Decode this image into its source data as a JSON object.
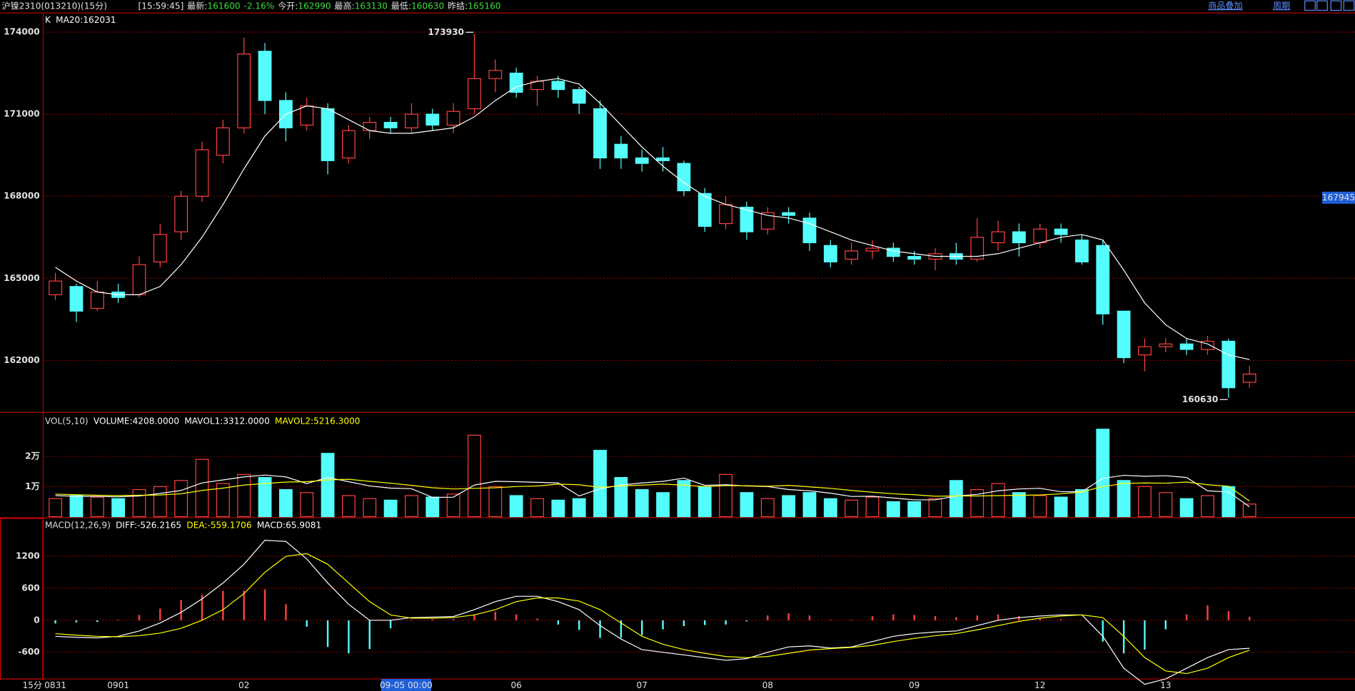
{
  "header": {
    "title": "沪镍2310(013210)(15分)",
    "time": "[15:59:45]",
    "quote": [
      {
        "label": "最新:",
        "value": 161600,
        "change": "-2.16%"
      },
      {
        "label": "今开:",
        "value": 162990
      },
      {
        "label": "最高:",
        "value": 163130
      },
      {
        "label": "最低:",
        "value": 160630
      },
      {
        "label": "昨结:",
        "value": 165160
      }
    ],
    "value_color": "#3cdc3c"
  },
  "toolbar": {
    "links": [
      "商品叠加",
      "周期"
    ]
  },
  "period_label": "15分",
  "cursor_time": "09-05 00:00",
  "chart_data": [
    {
      "type": "candlestick",
      "readouts": [
        {
          "text": "K",
          "color": "#ffffff"
        },
        {
          "text": "MA20:162031",
          "color": "#ffffff"
        }
      ],
      "categories": [
        "0831",
        null,
        null,
        "0901",
        null,
        null,
        null,
        null,
        null,
        "02",
        null,
        null,
        null,
        null,
        null,
        null,
        null,
        null,
        null,
        null,
        null,
        null,
        "06",
        null,
        null,
        null,
        null,
        null,
        "07",
        null,
        null,
        null,
        null,
        null,
        "08",
        null,
        null,
        null,
        null,
        null,
        null,
        "09",
        null,
        null,
        null,
        null,
        null,
        "12",
        null,
        null,
        null,
        null,
        null,
        "13",
        null,
        null,
        null,
        null
      ],
      "open": [
        164400,
        164700,
        163900,
        164500,
        164400,
        165600,
        166700,
        168000,
        169500,
        170500,
        173300,
        171500,
        170600,
        171200,
        169400,
        170400,
        170700,
        170500,
        171000,
        170600,
        171200,
        172300,
        172500,
        171900,
        172200,
        171900,
        171200,
        169900,
        169400,
        169400,
        169200,
        168100,
        167000,
        167600,
        166800,
        167400,
        167200,
        166200,
        165700,
        166000,
        166100,
        165800,
        165700,
        165900,
        165700,
        166300,
        166700,
        166300,
        166800,
        166400,
        166200,
        163800,
        162200,
        162500,
        162600,
        162400,
        162700,
        161200
      ],
      "high": [
        165200,
        164800,
        164900,
        164800,
        165800,
        167000,
        168200,
        170000,
        170800,
        173800,
        173600,
        171800,
        171600,
        171400,
        170600,
        170900,
        170900,
        171400,
        171200,
        171400,
        173930,
        173000,
        172700,
        172400,
        172400,
        172000,
        171500,
        170200,
        169700,
        169800,
        169300,
        168300,
        168000,
        167800,
        167600,
        167600,
        167400,
        166400,
        166300,
        166400,
        166300,
        166000,
        166100,
        166300,
        167200,
        167100,
        167000,
        167000,
        167000,
        166600,
        166400,
        163800,
        162800,
        162800,
        162800,
        162900,
        162800,
        161800
      ],
      "low": [
        164200,
        163400,
        163800,
        164100,
        164300,
        165400,
        166400,
        167800,
        169200,
        170300,
        171000,
        170000,
        170400,
        168800,
        169200,
        170100,
        170300,
        170300,
        170400,
        170300,
        171000,
        171800,
        171600,
        171300,
        171600,
        171000,
        169000,
        169000,
        168900,
        168900,
        168000,
        166700,
        166800,
        166400,
        166600,
        167000,
        166000,
        165400,
        165500,
        165700,
        165600,
        165500,
        165300,
        165500,
        165600,
        166000,
        165800,
        166100,
        166300,
        165500,
        163300,
        161900,
        161600,
        162300,
        162200,
        162200,
        160630,
        161000
      ],
      "close": [
        164900,
        163800,
        164500,
        164300,
        165500,
        166600,
        168000,
        169700,
        170500,
        173200,
        171500,
        170500,
        171300,
        169300,
        170400,
        170700,
        170500,
        171000,
        170600,
        171100,
        172300,
        172600,
        171800,
        172200,
        171900,
        171400,
        169400,
        169400,
        169200,
        169300,
        168200,
        166900,
        167700,
        166700,
        167400,
        167300,
        166300,
        165600,
        166000,
        166100,
        165800,
        165700,
        165900,
        165700,
        166500,
        166700,
        166300,
        166800,
        166600,
        165600,
        163700,
        162100,
        162500,
        162600,
        162400,
        162700,
        161000,
        161500
      ],
      "lines": [
        {
          "color": "#ffffff",
          "values": [
            165400,
            164900,
            164500,
            164400,
            164400,
            164700,
            165500,
            166500,
            167700,
            169000,
            170200,
            171000,
            171300,
            171200,
            170800,
            170400,
            170300,
            170300,
            170400,
            170500,
            170900,
            171500,
            172000,
            172200,
            172300,
            172100,
            171400,
            170600,
            169800,
            169100,
            168500,
            168000,
            167700,
            167500,
            167300,
            167200,
            167000,
            166700,
            166400,
            166200,
            166000,
            165900,
            165800,
            165800,
            165800,
            165900,
            166100,
            166300,
            166500,
            166600,
            166400,
            165300,
            164100,
            163300,
            162800,
            162600,
            162200,
            162031
          ]
        }
      ],
      "ylim": [
        160100,
        174700
      ],
      "yticks": [
        162000,
        165000,
        168000,
        171000,
        174000
      ],
      "up_color": "#ff4040",
      "down_color": "#54fcfc",
      "grid": true,
      "cursor_price": 167945
    },
    {
      "type": "volume",
      "readouts": [
        {
          "text": "VOL(5,10)",
          "color": "#dddddd"
        },
        {
          "text": "VOLUME:4208.0000",
          "color": "#ffffff"
        },
        {
          "text": "MAVOL1:3312.0000",
          "color": "#ffffff"
        },
        {
          "text": "MAVOL2:5216.3000",
          "color": "#ffff00"
        }
      ],
      "values": [
        6000,
        7000,
        6500,
        6000,
        9000,
        10000,
        12000,
        19000,
        11000,
        14000,
        13000,
        9000,
        8000,
        21000,
        7000,
        6000,
        5500,
        7000,
        6500,
        7500,
        27000,
        10000,
        7000,
        6000,
        5500,
        6000,
        22000,
        13000,
        9000,
        8000,
        12000,
        10000,
        14000,
        8000,
        6000,
        7000,
        8000,
        6000,
        5500,
        6500,
        5000,
        5000,
        6000,
        12000,
        9000,
        11000,
        8000,
        7000,
        6500,
        9000,
        29000,
        12000,
        10000,
        8000,
        6000,
        7000,
        10000,
        4208
      ],
      "lines": [
        {
          "color": "#ffffff",
          "values": [
            7000,
            6800,
            6700,
            6600,
            6900,
            7700,
            8700,
            11200,
            12200,
            13200,
            13800,
            13200,
            11000,
            13000,
            11600,
            10200,
            9500,
            9300,
            6400,
            6500,
            10500,
            11700,
            11600,
            11400,
            11200,
            6900,
            9300,
            10500,
            11200,
            11700,
            12800,
            10400,
            10600,
            10200,
            10000,
            9000,
            8600,
            7800,
            6700,
            6800,
            6200,
            5600,
            5600,
            6900,
            7400,
            8600,
            9200,
            9400,
            8300,
            8300,
            12700,
            13700,
            13400,
            13600,
            13000,
            8600,
            8200,
            3312
          ]
        },
        {
          "color": "#ffff00",
          "values": [
            7500,
            7300,
            7100,
            7000,
            7100,
            7200,
            7600,
            8700,
            9500,
            10500,
            11000,
            11500,
            11600,
            12200,
            12400,
            11700,
            11100,
            10400,
            9600,
            9200,
            9400,
            9600,
            10000,
            10200,
            10800,
            10600,
            9700,
            10200,
            10500,
            10800,
            10500,
            10000,
            10300,
            10300,
            10100,
            10400,
            9900,
            9400,
            8700,
            8100,
            7600,
            7300,
            6800,
            6900,
            6900,
            7000,
            7100,
            7200,
            7600,
            8200,
            10000,
            11000,
            11200,
            11100,
            11500,
            10600,
            10100,
            5216.3
          ]
        }
      ],
      "ylim": [
        0,
        34000
      ],
      "yticks": [
        {
          "value": 10000,
          "label": "1万"
        },
        {
          "value": 20000,
          "label": "2万"
        }
      ],
      "grid": true
    },
    {
      "type": "macd",
      "readouts": [
        {
          "text": "MACD(12,26,9)",
          "color": "#dddddd"
        },
        {
          "text": "DIFF:-526.2165",
          "color": "#ffffff"
        },
        {
          "text": "DEA:-559.1706",
          "color": "#ffff00"
        },
        {
          "text": "MACD:65.9081",
          "color": "#ffffff"
        }
      ],
      "values": [
        -60,
        -40,
        -30,
        10,
        100,
        220,
        380,
        480,
        550,
        560,
        580,
        300,
        -120,
        -500,
        -620,
        -540,
        -150,
        10,
        20,
        20,
        110,
        160,
        110,
        30,
        -80,
        -180,
        -330,
        -330,
        -280,
        -170,
        -110,
        -90,
        -80,
        -20,
        90,
        130,
        90,
        10,
        10,
        80,
        110,
        100,
        80,
        60,
        90,
        110,
        80,
        45,
        20,
        0,
        -400,
        -620,
        -550,
        -170,
        110,
        280,
        170,
        65.9081
      ],
      "lines": [
        {
          "color": "#ffffff",
          "values": [
            -300,
            -320,
            -330,
            -300,
            -200,
            -50,
            150,
            400,
            700,
            1050,
            1500,
            1480,
            1150,
            700,
            300,
            0,
            0,
            50,
            60,
            70,
            200,
            350,
            450,
            450,
            350,
            200,
            -100,
            -350,
            -550,
            -600,
            -650,
            -700,
            -750,
            -720,
            -600,
            -500,
            -480,
            -520,
            -500,
            -400,
            -300,
            -250,
            -220,
            -200,
            -100,
            0,
            50,
            80,
            100,
            100,
            -300,
            -900,
            -1200,
            -1100,
            -900,
            -700,
            -550,
            -526.2165
          ]
        },
        {
          "color": "#ffff00",
          "values": [
            -250,
            -280,
            -300,
            -310,
            -290,
            -240,
            -150,
            0,
            200,
            500,
            900,
            1200,
            1250,
            1050,
            700,
            350,
            100,
            40,
            40,
            50,
            100,
            200,
            350,
            420,
            420,
            360,
            200,
            -50,
            -300,
            -450,
            -550,
            -620,
            -680,
            -700,
            -680,
            -620,
            -560,
            -530,
            -510,
            -470,
            -400,
            -340,
            -290,
            -250,
            -180,
            -100,
            -20,
            40,
            80,
            100,
            50,
            -300,
            -700,
            -950,
            -1000,
            -900,
            -700,
            -559.1706
          ]
        }
      ],
      "ylim": [
        -1100,
        1910
      ],
      "yticks": [
        -600,
        0,
        600,
        1200
      ],
      "up_color": "#ff4040",
      "down_color": "#54fcfc",
      "grid": true
    }
  ]
}
